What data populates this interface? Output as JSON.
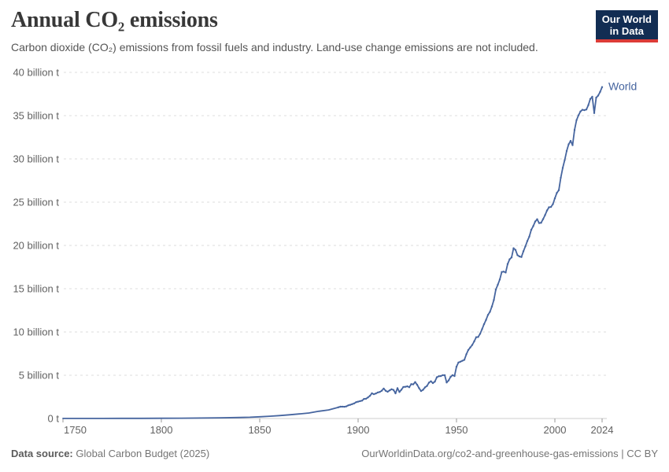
{
  "header": {
    "title": "Annual CO₂ emissions",
    "subtitle": "Carbon dioxide (CO₂) emissions from fossil fuels and industry. Land-use change emissions are not included.",
    "logo_line1": "Our World",
    "logo_line2": "in Data"
  },
  "footer": {
    "source_label": "Data source:",
    "source_value": "Global Carbon Budget (2025)",
    "url_text": "OurWorldinData.org/co2-and-greenhouse-gas-emissions | CC BY"
  },
  "colors": {
    "line_blue": "#46659F",
    "logo_navy": "#122D53",
    "logo_red": "#DC3B37",
    "gridline": "#dcdcdc",
    "axis_gray": "#cccccc"
  },
  "chart_data": {
    "type": "line",
    "title": "Annual CO₂ emissions",
    "xlabel": "",
    "ylabel": "",
    "unit": "billion t",
    "grid": "horizontal-dashed",
    "legend_position": "end-of-line",
    "xlim": [
      1750,
      2024
    ],
    "ylim": [
      0,
      40
    ],
    "yticks": [
      {
        "v": 0,
        "label": "0 t"
      },
      {
        "v": 5,
        "label": "5 billion t"
      },
      {
        "v": 10,
        "label": "10 billion t"
      },
      {
        "v": 15,
        "label": "15 billion t"
      },
      {
        "v": 20,
        "label": "20 billion t"
      },
      {
        "v": 25,
        "label": "25 billion t"
      },
      {
        "v": 30,
        "label": "30 billion t"
      },
      {
        "v": 35,
        "label": "35 billion t"
      },
      {
        "v": 40,
        "label": "40 billion t"
      }
    ],
    "xticks": [
      {
        "v": 1750,
        "label": "1750"
      },
      {
        "v": 1800,
        "label": "1800"
      },
      {
        "v": 1850,
        "label": "1850"
      },
      {
        "v": 1900,
        "label": "1900"
      },
      {
        "v": 1950,
        "label": "1950"
      },
      {
        "v": 2000,
        "label": "2000"
      },
      {
        "v": 2024,
        "label": "2024"
      }
    ],
    "series": [
      {
        "name": "World",
        "color": "#46659F",
        "points": [
          [
            1750,
            0.009
          ],
          [
            1760,
            0.011
          ],
          [
            1770,
            0.013
          ],
          [
            1780,
            0.016
          ],
          [
            1790,
            0.021
          ],
          [
            1800,
            0.03
          ],
          [
            1810,
            0.04
          ],
          [
            1820,
            0.054
          ],
          [
            1830,
            0.083
          ],
          [
            1840,
            0.12
          ],
          [
            1845,
            0.15
          ],
          [
            1850,
            0.2
          ],
          [
            1855,
            0.26
          ],
          [
            1860,
            0.34
          ],
          [
            1865,
            0.43
          ],
          [
            1870,
            0.53
          ],
          [
            1875,
            0.64
          ],
          [
            1880,
            0.84
          ],
          [
            1885,
            0.99
          ],
          [
            1890,
            1.3
          ],
          [
            1891,
            1.36
          ],
          [
            1892,
            1.37
          ],
          [
            1893,
            1.35
          ],
          [
            1894,
            1.4
          ],
          [
            1895,
            1.52
          ],
          [
            1896,
            1.58
          ],
          [
            1897,
            1.66
          ],
          [
            1898,
            1.75
          ],
          [
            1899,
            1.89
          ],
          [
            1900,
            1.95
          ],
          [
            1901,
            2.01
          ],
          [
            1902,
            2.06
          ],
          [
            1903,
            2.26
          ],
          [
            1904,
            2.28
          ],
          [
            1905,
            2.44
          ],
          [
            1906,
            2.62
          ],
          [
            1907,
            2.91
          ],
          [
            1908,
            2.81
          ],
          [
            1909,
            2.89
          ],
          [
            1910,
            3.01
          ],
          [
            1911,
            3.06
          ],
          [
            1912,
            3.21
          ],
          [
            1913,
            3.46
          ],
          [
            1914,
            3.21
          ],
          [
            1915,
            3.09
          ],
          [
            1916,
            3.25
          ],
          [
            1917,
            3.38
          ],
          [
            1918,
            3.3
          ],
          [
            1919,
            2.91
          ],
          [
            1920,
            3.51
          ],
          [
            1921,
            3.06
          ],
          [
            1922,
            3.33
          ],
          [
            1923,
            3.65
          ],
          [
            1924,
            3.66
          ],
          [
            1925,
            3.72
          ],
          [
            1926,
            3.62
          ],
          [
            1927,
            3.97
          ],
          [
            1928,
            3.95
          ],
          [
            1929,
            4.21
          ],
          [
            1930,
            3.9
          ],
          [
            1931,
            3.5
          ],
          [
            1932,
            3.17
          ],
          [
            1933,
            3.32
          ],
          [
            1934,
            3.6
          ],
          [
            1935,
            3.76
          ],
          [
            1936,
            4.15
          ],
          [
            1937,
            4.3
          ],
          [
            1938,
            4.09
          ],
          [
            1939,
            4.26
          ],
          [
            1940,
            4.76
          ],
          [
            1941,
            4.88
          ],
          [
            1942,
            4.9
          ],
          [
            1943,
            5.01
          ],
          [
            1944,
            5.01
          ],
          [
            1945,
            4.16
          ],
          [
            1946,
            4.4
          ],
          [
            1947,
            4.81
          ],
          [
            1948,
            5.01
          ],
          [
            1949,
            4.91
          ],
          [
            1950,
            5.99
          ],
          [
            1951,
            6.47
          ],
          [
            1952,
            6.56
          ],
          [
            1953,
            6.67
          ],
          [
            1954,
            6.78
          ],
          [
            1955,
            7.42
          ],
          [
            1956,
            7.92
          ],
          [
            1957,
            8.21
          ],
          [
            1958,
            8.5
          ],
          [
            1959,
            8.91
          ],
          [
            1960,
            9.39
          ],
          [
            1961,
            9.42
          ],
          [
            1962,
            9.79
          ],
          [
            1963,
            10.33
          ],
          [
            1964,
            10.9
          ],
          [
            1965,
            11.39
          ],
          [
            1966,
            11.97
          ],
          [
            1967,
            12.33
          ],
          [
            1968,
            12.95
          ],
          [
            1969,
            13.71
          ],
          [
            1970,
            14.9
          ],
          [
            1971,
            15.46
          ],
          [
            1972,
            16.06
          ],
          [
            1973,
            16.93
          ],
          [
            1974,
            16.97
          ],
          [
            1975,
            16.87
          ],
          [
            1976,
            17.85
          ],
          [
            1977,
            18.4
          ],
          [
            1978,
            18.62
          ],
          [
            1979,
            19.67
          ],
          [
            1980,
            19.48
          ],
          [
            1981,
            18.87
          ],
          [
            1982,
            18.73
          ],
          [
            1983,
            18.66
          ],
          [
            1984,
            19.32
          ],
          [
            1985,
            19.89
          ],
          [
            1986,
            20.51
          ],
          [
            1987,
            21.02
          ],
          [
            1988,
            21.81
          ],
          [
            1989,
            22.23
          ],
          [
            1990,
            22.76
          ],
          [
            1991,
            23.03
          ],
          [
            1992,
            22.58
          ],
          [
            1993,
            22.62
          ],
          [
            1994,
            23.04
          ],
          [
            1995,
            23.5
          ],
          [
            1996,
            24.04
          ],
          [
            1997,
            24.41
          ],
          [
            1998,
            24.45
          ],
          [
            1999,
            24.77
          ],
          [
            2000,
            25.45
          ],
          [
            2001,
            26.07
          ],
          [
            2002,
            26.38
          ],
          [
            2003,
            27.83
          ],
          [
            2004,
            28.96
          ],
          [
            2005,
            29.87
          ],
          [
            2006,
            30.92
          ],
          [
            2007,
            31.69
          ],
          [
            2008,
            32.08
          ],
          [
            2009,
            31.59
          ],
          [
            2010,
            33.35
          ],
          [
            2011,
            34.47
          ],
          [
            2012,
            35.04
          ],
          [
            2013,
            35.48
          ],
          [
            2014,
            35.67
          ],
          [
            2015,
            35.64
          ],
          [
            2016,
            35.71
          ],
          [
            2017,
            36.21
          ],
          [
            2018,
            36.93
          ],
          [
            2019,
            37.18
          ],
          [
            2020,
            35.3
          ],
          [
            2021,
            37.08
          ],
          [
            2022,
            37.32
          ],
          [
            2023,
            37.75
          ],
          [
            2024,
            38.3
          ]
        ]
      }
    ]
  }
}
